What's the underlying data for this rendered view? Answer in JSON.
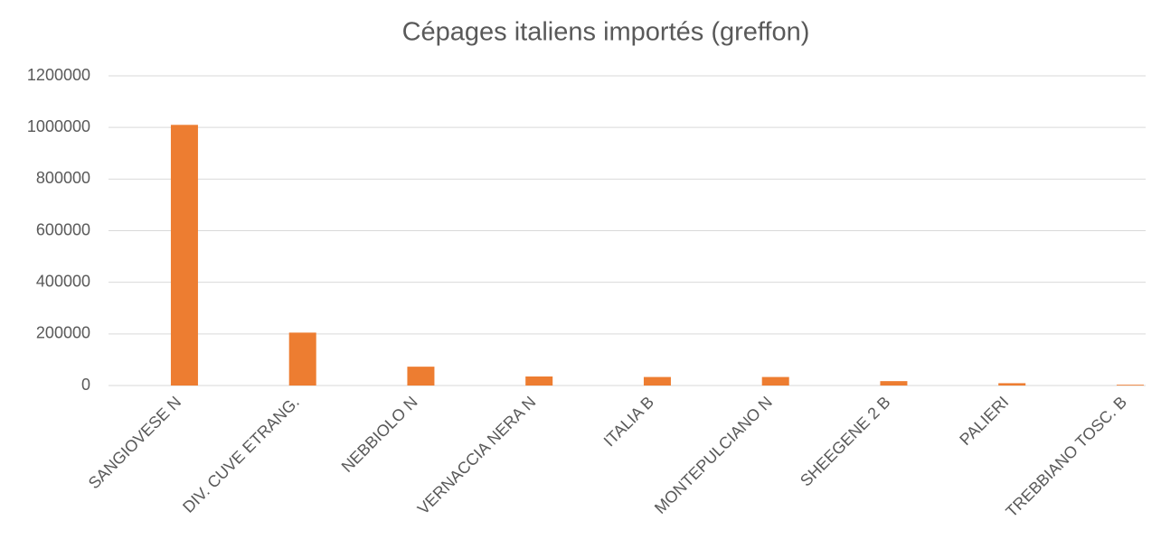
{
  "chart_data": {
    "type": "bar",
    "title": "Cépages italiens importés (greffon)",
    "categories": [
      "SANGIOVESE N",
      "DIV. CUVE ETRANG.",
      "NEBBIOLO N",
      "VERNACCIA NERA N",
      "ITALIA B",
      "MONTEPULCIANO N",
      "SHEEGENE 2 B",
      "PALIERI",
      "TREBBIANO TOSC. B"
    ],
    "values": [
      1010000,
      205000,
      73000,
      35000,
      33000,
      33000,
      17000,
      9000,
      3000
    ],
    "color": "#ed7d31",
    "ylim": [
      0,
      1200000
    ],
    "yticks": [
      0,
      200000,
      400000,
      600000,
      800000,
      1000000,
      1200000
    ],
    "grid": true
  }
}
